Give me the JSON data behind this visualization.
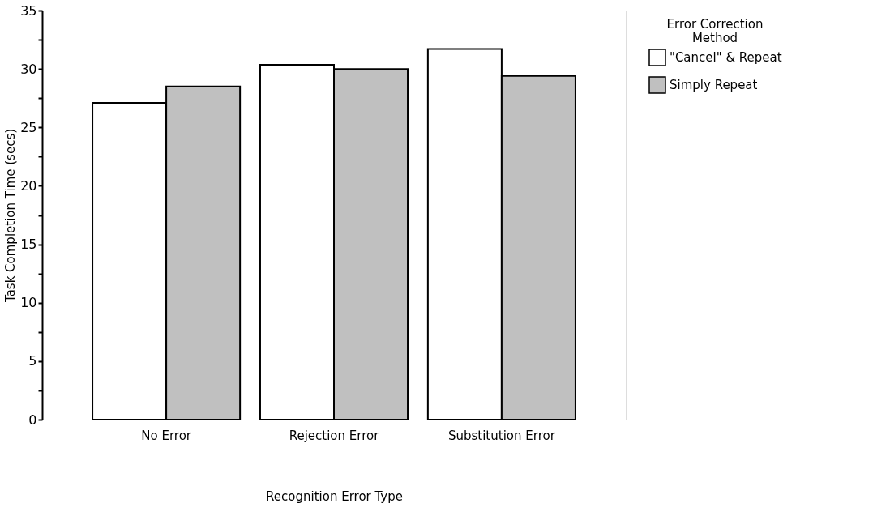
{
  "chart_data": {
    "type": "bar",
    "xlabel": "Recognition Error Type",
    "ylabel": "Task Completion Time (secs)",
    "legend_title": "Error Correction Method",
    "categories": [
      "No Error",
      "Rejection Error",
      "Substitution Error"
    ],
    "series": [
      {
        "name": "\"Cancel\" & Repeat",
        "color": "#ffffff",
        "values": [
          27.1,
          30.35,
          31.7
        ]
      },
      {
        "name": "Simply Repeat",
        "color": "#c0c0c0",
        "values": [
          28.5,
          30.0,
          29.4
        ]
      }
    ],
    "ylim": [
      0,
      35
    ],
    "yticks": [
      0,
      {
        "value": 2.5,
        "label": null
      },
      5,
      {
        "value": 7.5,
        "label": null
      },
      10,
      {
        "value": 12.5,
        "label": null
      },
      15,
      {
        "value": 17.5,
        "label": null
      },
      20,
      {
        "value": 22.5,
        "label": null
      },
      25,
      {
        "value": 27.5,
        "label": null
      },
      30,
      {
        "value": 32.5,
        "label": null
      },
      35
    ],
    "grid": false,
    "legend": "right"
  }
}
